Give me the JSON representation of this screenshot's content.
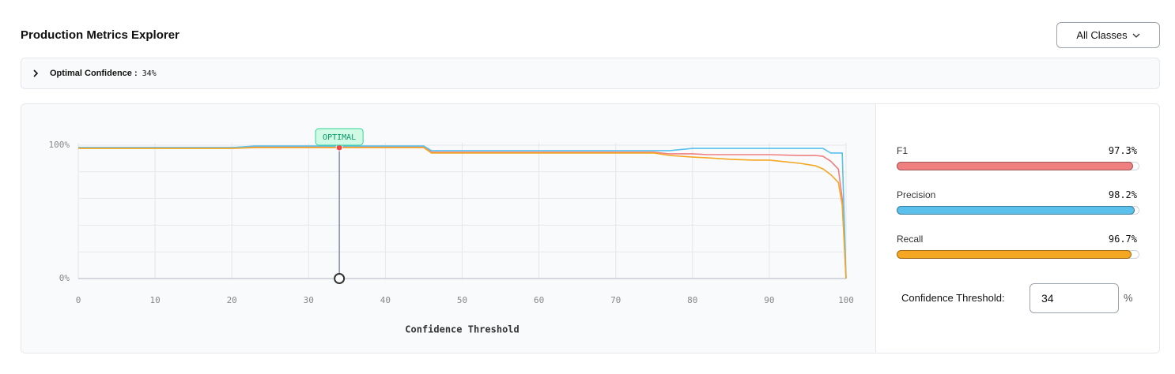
{
  "header": {
    "title": "Production Metrics Explorer",
    "button": "All Classes"
  },
  "summary": {
    "label": "Optimal Confidence :",
    "value": "34%"
  },
  "chart_data": {
    "type": "line",
    "x_label": "Confidence Threshold",
    "x": [
      0,
      10,
      20,
      23,
      30,
      40,
      45,
      46,
      60,
      70,
      75,
      77,
      80,
      82,
      85,
      88,
      90,
      94,
      96,
      97,
      98,
      99,
      99.5,
      100
    ],
    "series": [
      {
        "name": "F1",
        "color": "#f08080",
        "values": [
          98.2,
          98.2,
          98.2,
          98.8,
          98.8,
          98.8,
          98.8,
          94.7,
          94.7,
          94.7,
          94.7,
          93.5,
          93.5,
          92.9,
          92.9,
          92.9,
          92.9,
          92.3,
          92.3,
          91.7,
          88,
          82,
          60,
          0
        ]
      },
      {
        "name": "Precision",
        "color": "#5bc0eb",
        "values": [
          98.2,
          98.2,
          98.2,
          99.4,
          99.4,
          99.4,
          99.4,
          95.9,
          95.9,
          95.9,
          95.9,
          95.9,
          97.6,
          97.6,
          97.6,
          97.6,
          97.6,
          97.6,
          97.6,
          97.6,
          94.1,
          94.1,
          94.1,
          0
        ]
      },
      {
        "name": "Recall",
        "color": "#f5a623",
        "values": [
          97.6,
          97.6,
          97.6,
          98.2,
          98.2,
          98.2,
          98.2,
          94.1,
          94.1,
          94.1,
          94.1,
          92.3,
          91.1,
          90.5,
          89.4,
          88.8,
          88.8,
          86.4,
          84.6,
          82.2,
          78,
          72,
          55,
          0
        ]
      }
    ],
    "xlim": [
      0,
      100
    ],
    "xticks": [
      0,
      10,
      20,
      30,
      40,
      50,
      60,
      70,
      80,
      90,
      100
    ],
    "ylim": [
      0,
      100
    ],
    "yticks": [
      {
        "value": 0,
        "label": "0%"
      },
      {
        "value": 100,
        "label": "100%"
      }
    ],
    "ygrid": [
      0,
      20,
      40,
      60,
      80,
      100
    ],
    "grid": true,
    "marker": {
      "x": 34,
      "y": 98.2,
      "label": "OPTIMAL"
    }
  },
  "metrics": {
    "range": [
      0,
      100
    ],
    "items": [
      {
        "name": "F1",
        "value": 97.3,
        "value_label": "97.3%",
        "color": "#f08080"
      },
      {
        "name": "Precision",
        "value": 98.2,
        "value_label": "98.2%",
        "color": "#5bc0eb"
      },
      {
        "name": "Recall",
        "value": 96.7,
        "value_label": "96.7%",
        "color": "#f5a623"
      }
    ]
  },
  "threshold": {
    "label": "Confidence Threshold:",
    "value": "34",
    "unit": "%"
  }
}
